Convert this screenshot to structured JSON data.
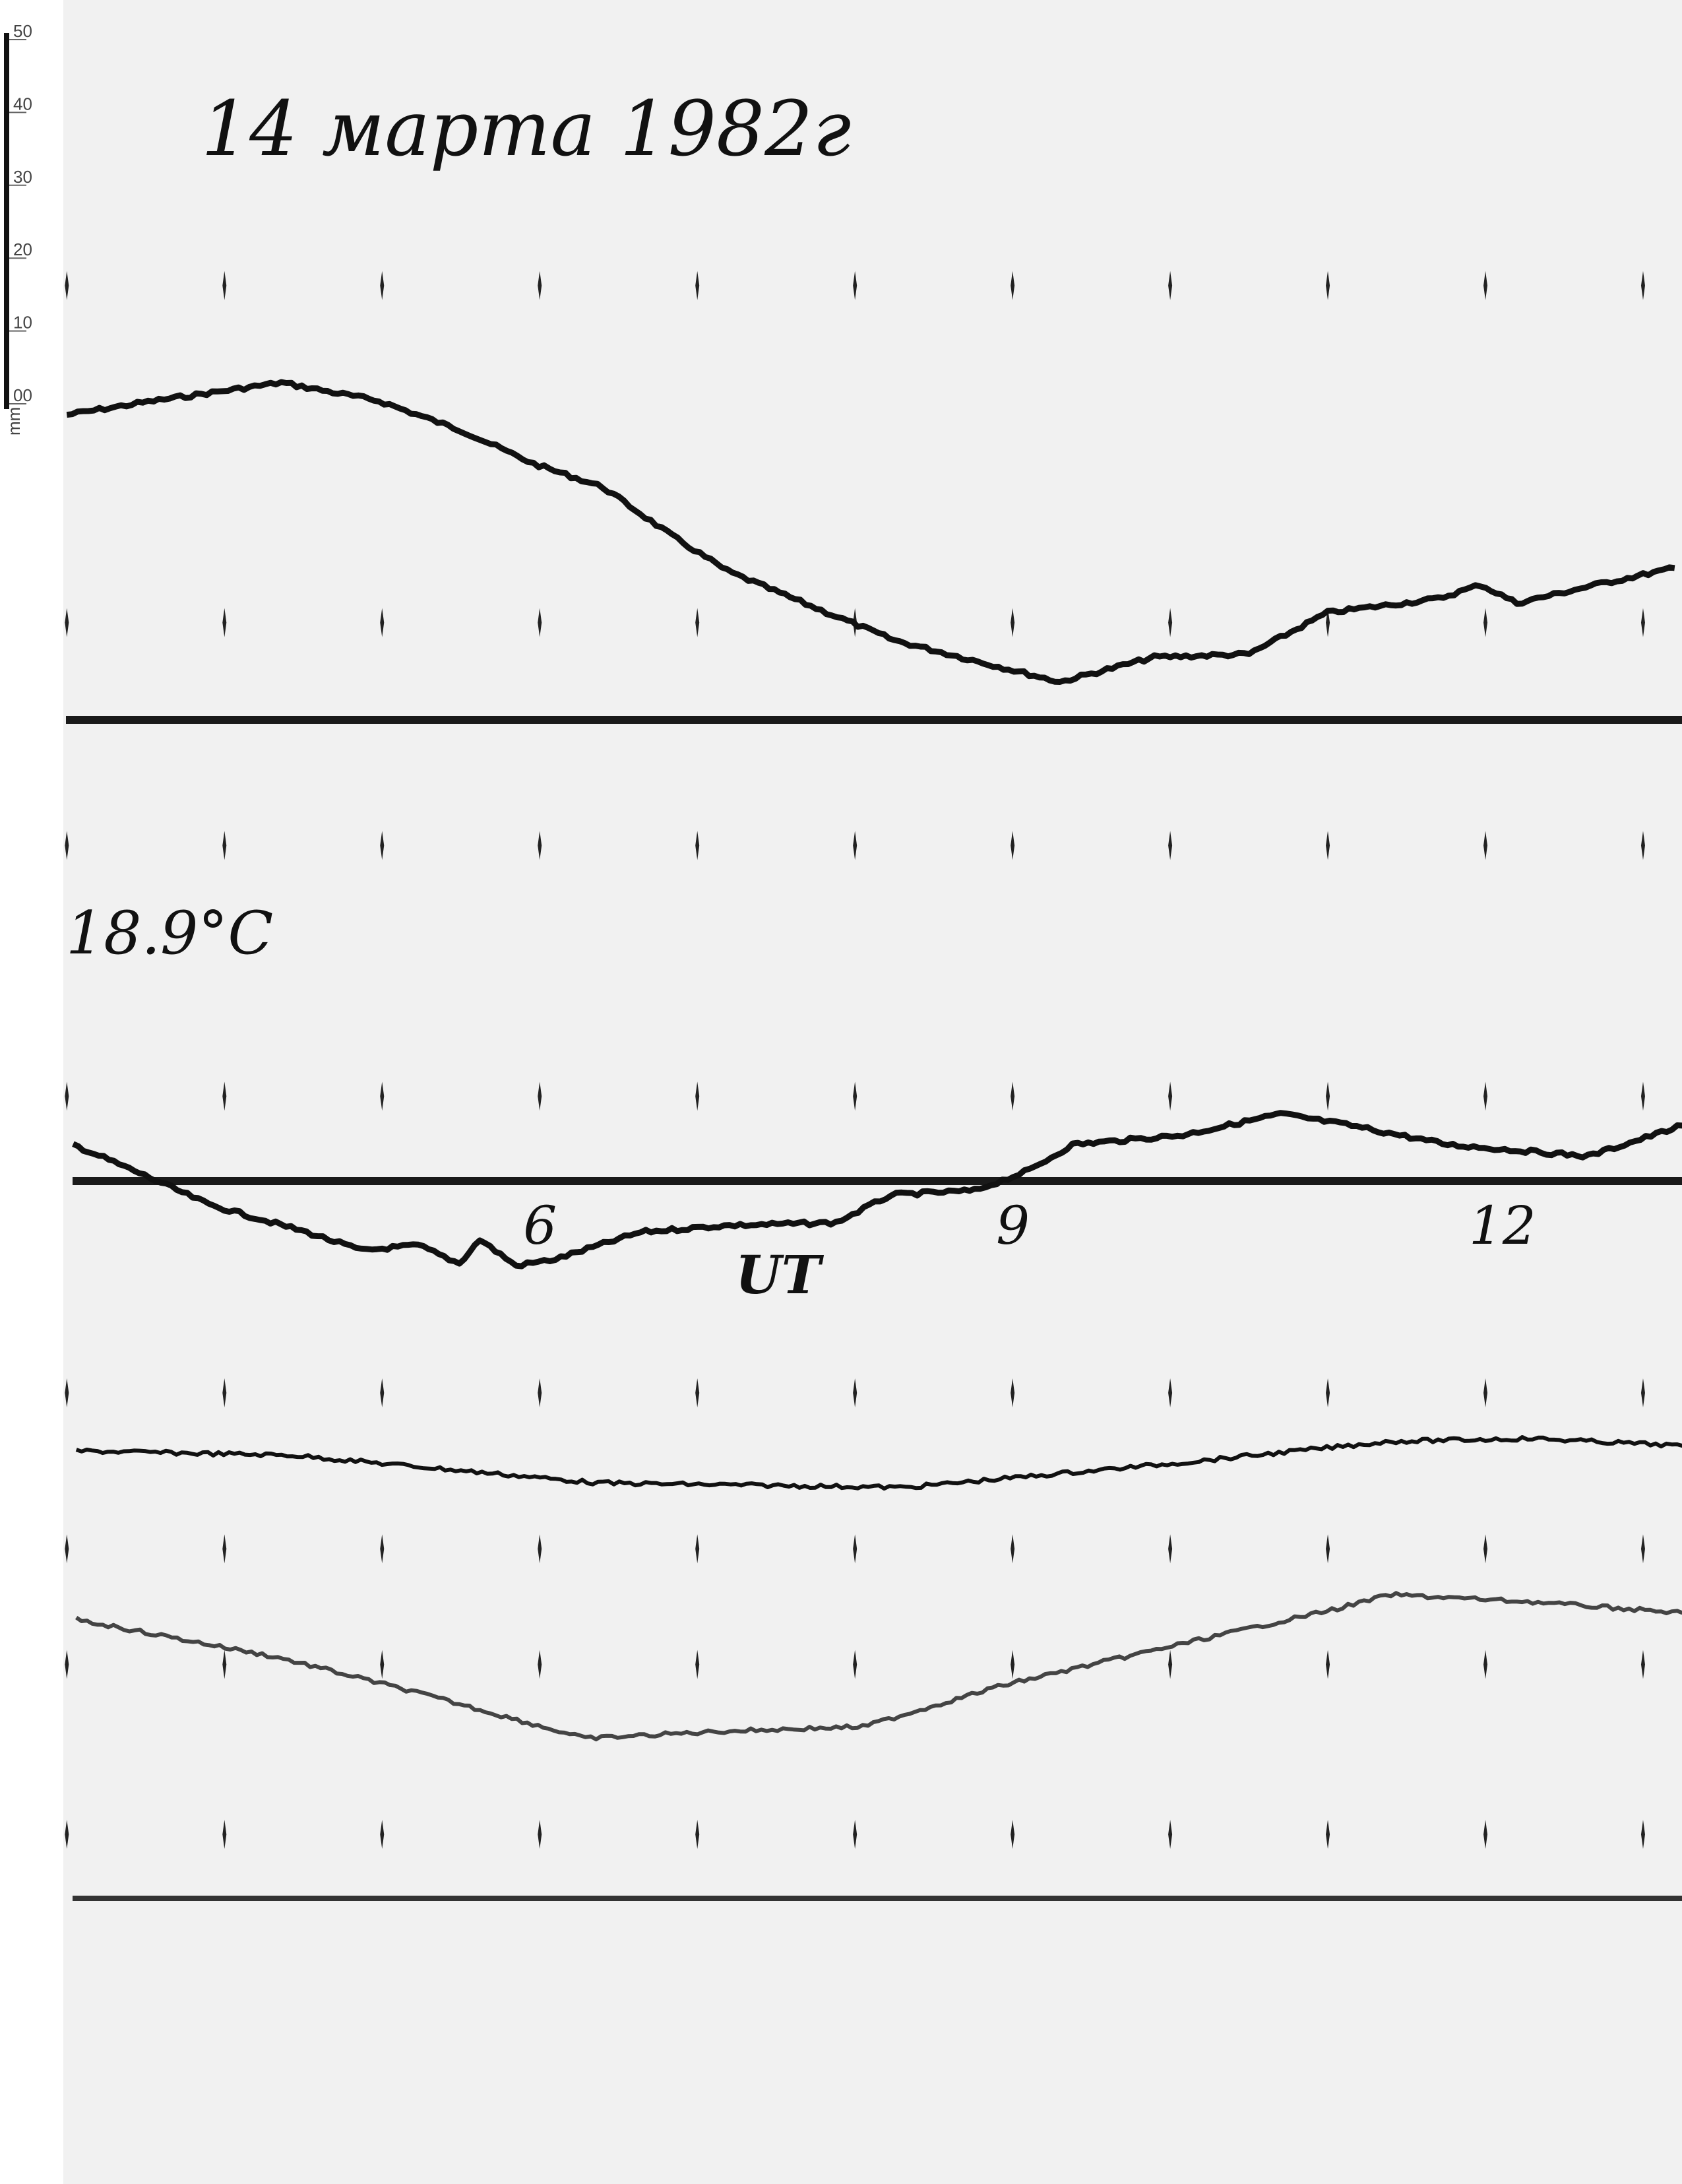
{
  "chart_data": {
    "type": "line",
    "title": "14 марта 1982г",
    "annotation": "18.9°C",
    "xlabel": "UT",
    "x_unit": "hour UT",
    "x_tick_labels": [
      {
        "hour": 6,
        "label": "6"
      },
      {
        "hour": 9,
        "label": "9"
      },
      {
        "hour": 12,
        "label": "12"
      }
    ],
    "xlim": [
      3,
      13.25
    ],
    "hour_marks": [
      3,
      4,
      5,
      6,
      7,
      8,
      9,
      10,
      11,
      12,
      13
    ],
    "y_unit": "mm",
    "ruler": {
      "unit_label": "mm",
      "ticks": [
        "00",
        "10",
        "20",
        "30",
        "40",
        "50"
      ],
      "range": [
        0,
        50
      ]
    },
    "grid": false,
    "trace_color": "#111111",
    "series": [
      {
        "baseline": "upper",
        "points": [
          [
            3.0,
            41.8
          ],
          [
            3.55,
            43.7
          ],
          [
            4.36,
            46.2
          ],
          [
            4.98,
            43.7
          ],
          [
            5.52,
            39.5
          ],
          [
            5.96,
            35.1
          ],
          [
            6.4,
            31.9
          ],
          [
            6.84,
            25.2
          ],
          [
            7.19,
            20.4
          ],
          [
            7.72,
            15.6
          ],
          [
            8.25,
            10.9
          ],
          [
            8.78,
            8.0
          ],
          [
            9.3,
            5.2
          ],
          [
            9.9,
            8.6
          ],
          [
            10.5,
            9.0
          ],
          [
            11.0,
            14.7
          ],
          [
            11.7,
            16.6
          ],
          [
            11.97,
            18.5
          ],
          [
            12.2,
            16.0
          ],
          [
            12.7,
            18.5
          ],
          [
            13.2,
            20.8
          ]
        ]
      },
      {
        "baseline": "middle",
        "points": [
          [
            3.04,
            5.0
          ],
          [
            3.46,
            1.1
          ],
          [
            3.9,
            -3.2
          ],
          [
            4.52,
            -7.0
          ],
          [
            4.87,
            -9.5
          ],
          [
            5.23,
            -8.8
          ],
          [
            5.49,
            -11.3
          ],
          [
            5.62,
            -8.0
          ],
          [
            5.85,
            -11.6
          ],
          [
            6.1,
            -10.7
          ],
          [
            6.64,
            -7.0
          ],
          [
            7.17,
            -6.1
          ],
          [
            7.88,
            -5.7
          ],
          [
            8.23,
            -1.9
          ],
          [
            8.76,
            -1.3
          ],
          [
            9.11,
            1.5
          ],
          [
            9.38,
            5.0
          ],
          [
            10.08,
            6.3
          ],
          [
            10.7,
            9.2
          ],
          [
            11.15,
            7.6
          ],
          [
            11.76,
            5.0
          ],
          [
            12.65,
            3.4
          ],
          [
            13.25,
            7.6
          ]
        ]
      },
      {
        "baseline": "lower",
        "points": [
          [
            3.06,
            61.3
          ],
          [
            4.43,
            60.7
          ],
          [
            6.37,
            56.9
          ],
          [
            8.32,
            56.3
          ],
          [
            10.08,
            59.7
          ],
          [
            11.4,
            62.6
          ],
          [
            12.3,
            63.0
          ],
          [
            13.25,
            62.0
          ]
        ]
      },
      {
        "baseline": "lower",
        "points": [
          [
            3.06,
            38.2
          ],
          [
            4.34,
            33.0
          ],
          [
            5.22,
            28.2
          ],
          [
            6.29,
            21.9
          ],
          [
            7.17,
            22.9
          ],
          [
            8.05,
            23.5
          ],
          [
            8.94,
            29.2
          ],
          [
            10.08,
            34.9
          ],
          [
            11.06,
            39.7
          ],
          [
            11.4,
            41.6
          ],
          [
            12.3,
            40.6
          ],
          [
            13.25,
            39.1
          ]
        ]
      }
    ]
  }
}
